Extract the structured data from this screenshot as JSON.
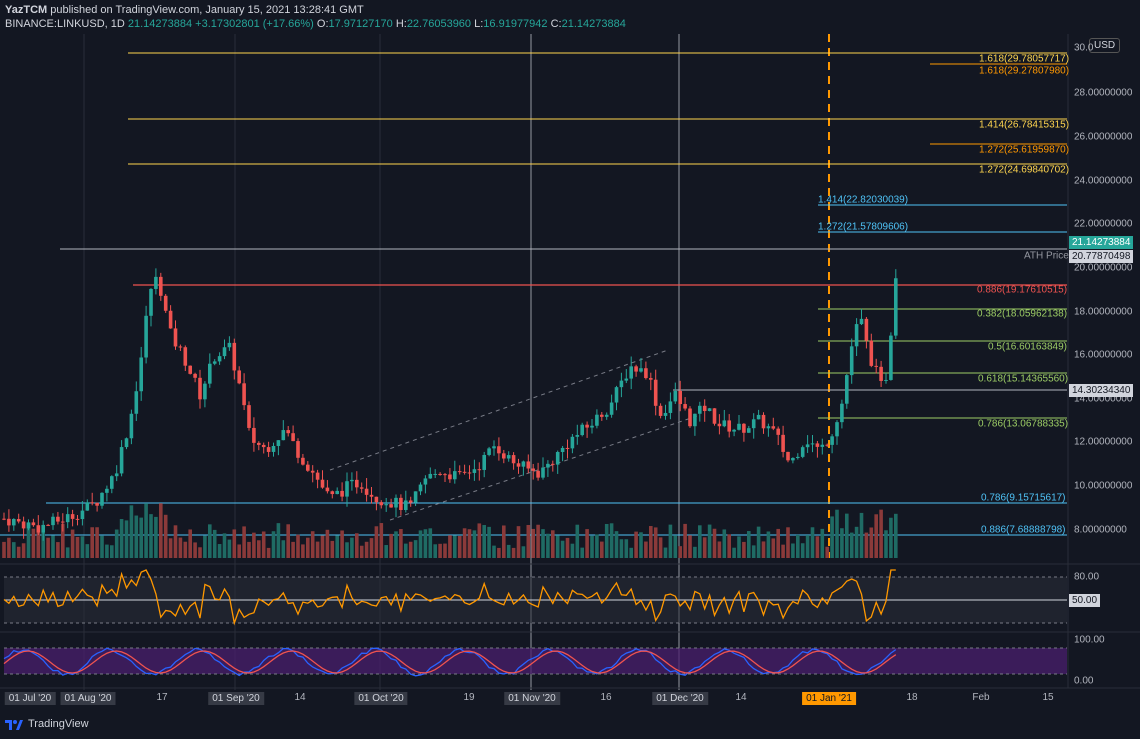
{
  "header": {
    "publisher": "YazTCM",
    "published_text": "published on TradingView.com, January 15, 2021 13:28:41 GMT",
    "symbol": "BINANCE:LINKUSD, 1D",
    "last": "21.14273884",
    "change": "+3.17302801 (+17.66%)",
    "o_label": "O:",
    "o_value": "17.97127170",
    "h_label": "H:",
    "h_value": "22.76053960",
    "l_label": "L:",
    "l_value": "16.91977942",
    "c_label": "C:",
    "c_value": "21.14273884"
  },
  "price_axis": {
    "currency": "USD",
    "ticks": [
      "30.0",
      "28.00000000",
      "26.00000000",
      "24.00000000",
      "22.00000000",
      "20.00000000",
      "18.00000000",
      "16.00000000",
      "14.00000000",
      "12.00000000",
      "10.00000000",
      "8.00000000"
    ],
    "current_price_tag": "21.14273884",
    "ath_price_tag": "20.77870498",
    "support_tag": "14.30234340"
  },
  "fib_labels": [
    {
      "text": "1.618(29.78057717)",
      "color": "#ffd54f"
    },
    {
      "text": "1.618(29.27807980)",
      "color": "#ff9800"
    },
    {
      "text": "1.414(26.78415315)",
      "color": "#ffd54f"
    },
    {
      "text": "1.272(25.61959870)",
      "color": "#ff9800"
    },
    {
      "text": "1.272(24.69840702)",
      "color": "#ffd54f"
    },
    {
      "text": "1.414(22.82030039)",
      "color": "#4fc3f7"
    },
    {
      "text": "1.272(21.57809606)",
      "color": "#4fc3f7"
    },
    {
      "text": "ATH Price",
      "color": "#9598a1"
    },
    {
      "text": "0.886(19.17610515)",
      "color": "#ef5350"
    },
    {
      "text": "0.382(18.05962138)",
      "color": "#9ccc65"
    },
    {
      "text": "0.5(16.60163849)",
      "color": "#9ccc65"
    },
    {
      "text": "0.618(15.14365560)",
      "color": "#9ccc65"
    },
    {
      "text": "0.786(13.06788335)",
      "color": "#9ccc65"
    },
    {
      "text": "0.786(9.15715617)",
      "color": "#4fc3f7"
    },
    {
      "text": "0.886(7.68888798)",
      "color": "#4fc3f7"
    }
  ],
  "rsi_axis": {
    "top": "80.00",
    "mid": "50.00"
  },
  "stoch_axis": {
    "top": "100.00",
    "bottom": "0.00"
  },
  "time_axis": [
    {
      "label": "01 Jul '20",
      "style": "box"
    },
    {
      "label": "01 Aug '20",
      "style": "box"
    },
    {
      "label": "17",
      "style": "plain"
    },
    {
      "label": "01 Sep '20",
      "style": "box"
    },
    {
      "label": "14",
      "style": "plain"
    },
    {
      "label": "01 Oct '20",
      "style": "box"
    },
    {
      "label": "19",
      "style": "plain"
    },
    {
      "label": "01 Nov '20",
      "style": "box"
    },
    {
      "label": "16",
      "style": "plain"
    },
    {
      "label": "01 Dec '20",
      "style": "box"
    },
    {
      "label": "14",
      "style": "plain"
    },
    {
      "label": "01 Jan '21",
      "style": "orange"
    },
    {
      "label": "18",
      "style": "plain"
    },
    {
      "label": "Feb",
      "style": "plain"
    },
    {
      "label": "15",
      "style": "plain"
    }
  ],
  "footer": {
    "brand": "TradingView"
  },
  "colors": {
    "bg": "#131722",
    "up": "#26a69a",
    "down": "#ef5350",
    "rsi": "#ff9800",
    "stoch_k": "#2962ff",
    "stoch_d": "#ef5350",
    "stoch_band": "#4a1f6e"
  }
}
